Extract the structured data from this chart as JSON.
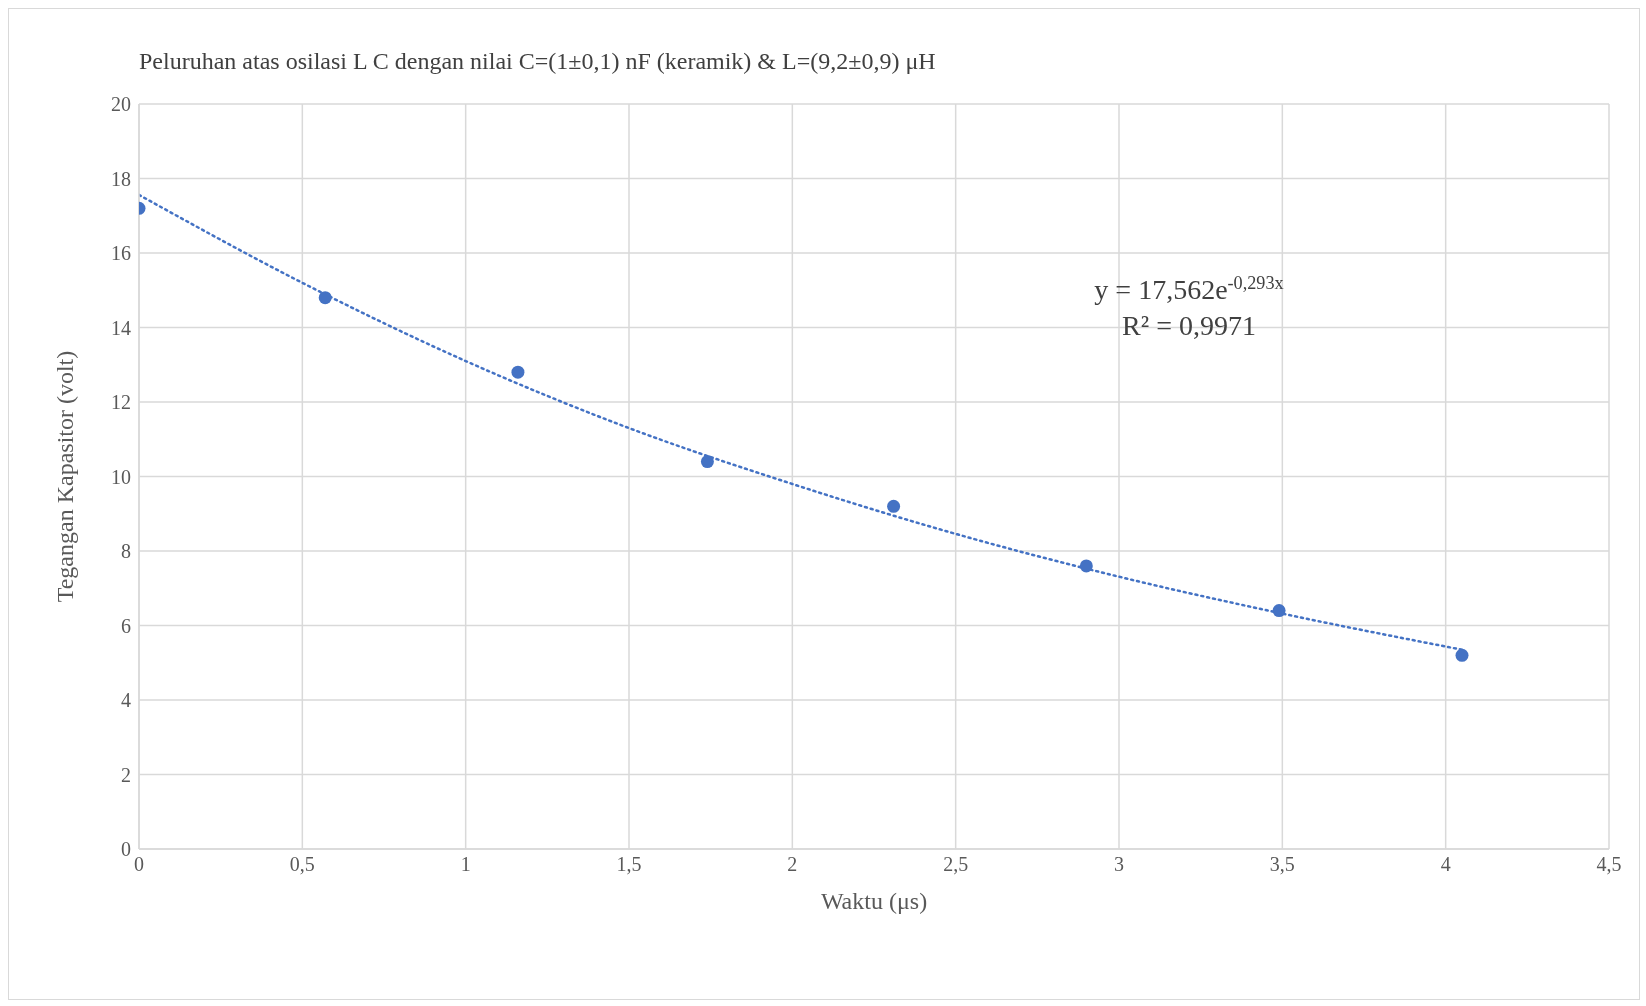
{
  "chart_data": {
    "type": "scatter",
    "title": "Peluruhan atas osilasi L C dengan nilai C=(1±0,1) nF (keramik)  & L=(9,2±0,9)  μH",
    "xlabel": "Waktu (μs)",
    "ylabel": "Tegangan Kapasitor (volt)",
    "annotations": [
      "y = 17,562e$^{-0,293x}$",
      "R² = 0,9971"
    ],
    "series": [
      {
        "color": "#4472c4",
        "marker": "circle",
        "x": [
          0,
          0.57,
          1.16,
          1.74,
          2.31,
          2.9,
          3.49,
          4.05
        ],
        "values": [
          17.2,
          14.8,
          12.8,
          10.4,
          9.2,
          7.6,
          6.4,
          5.2
        ]
      },
      {
        "type": "line",
        "color": "#4472c4",
        "marker": "none",
        "line_style": "dotted",
        "x": [
          0,
          0.5,
          1,
          1.5,
          2,
          2.5,
          3,
          3.5,
          4.05
        ],
        "values": [
          17.56,
          15.2,
          13.1,
          11.3,
          9.8,
          8.46,
          7.31,
          6.32,
          5.35
        ]
      }
    ],
    "xlim": [
      0,
      4.5
    ],
    "xticks": [
      0,
      {
        "value": 0.5,
        "label": "0,5"
      },
      1,
      {
        "value": 1.5,
        "label": "1,5"
      },
      2,
      {
        "value": 2.5,
        "label": "2,5"
      },
      3,
      {
        "value": 3.5,
        "label": "3,5"
      },
      4,
      {
        "value": 4.5,
        "label": "4,5"
      }
    ],
    "ylim": [
      0,
      20
    ],
    "yticks": [
      0,
      2,
      4,
      6,
      8,
      10,
      12,
      14,
      16,
      18,
      20
    ],
    "grid": true
  }
}
